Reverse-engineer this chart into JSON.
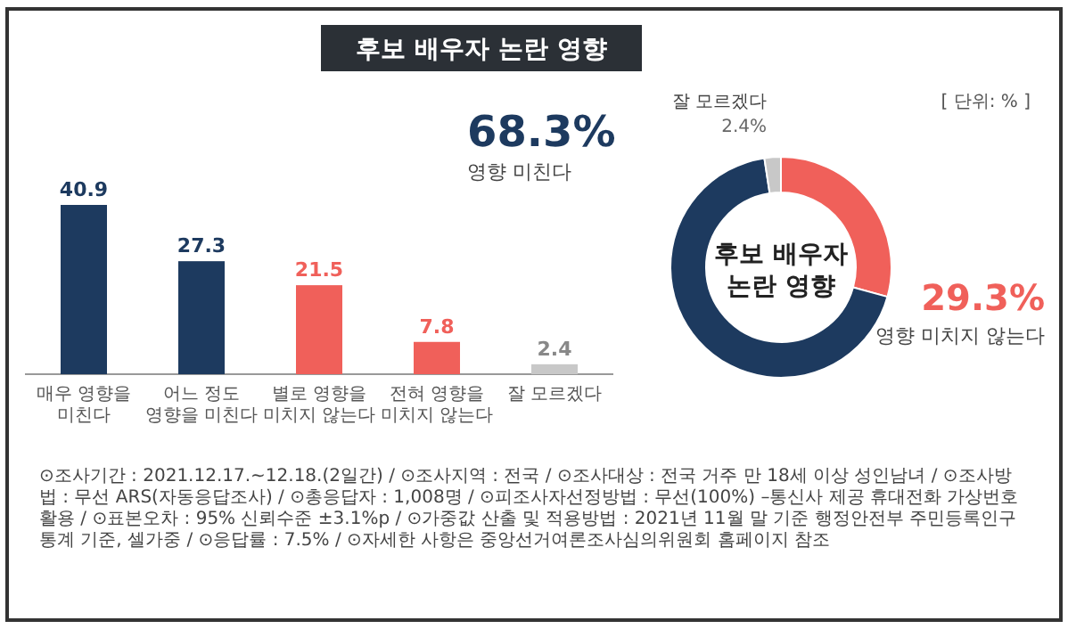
{
  "chart_data": [
    {
      "type": "bar",
      "title": "후보 배우자 논란 영향",
      "categories": [
        "매우 영향을\n미친다",
        "어느 정도\n영향을 미친다",
        "별로 영향을\n미치지 않는다",
        "전혀 영향을\n미치지 않는다",
        "잘 모르겠다"
      ],
      "values": [
        40.9,
        27.3,
        21.5,
        7.8,
        2.4
      ],
      "colors": [
        "#1d3a5f",
        "#1d3a5f",
        "#f0605a",
        "#f0605a",
        "#c8c8c8"
      ],
      "data_labels": true,
      "annotations": [
        "[ 단위: % ]",
        "⊙조사기간 : 2021.12.17.~12.18.(2일간) / ⊙조사지역 : 전국 / ⊙조사대상 : 전국 거주 만 18세 이상 성인남녀 / ⊙조사방법 : 무선 ARS(자동응답조사) / ⊙총응답자 : 1,008명 / ⊙피조사자선정방법 : 무선(100%) –통신사 제공 휴대전화 가상번호 활용 / ⊙표본오차 : 95% 신뢰수준 ±3.1%p / ⊙가중값 산출 및 적용방법 : 2021년 11월 말 기준 행정안전부 주민등록인구통계 기준, 셀가중 / ⊙응답률 : 7.5% / ⊙자세한 사항은 중앙선거여론조사심의위원회 홈페이지 참조"
      ]
    },
    {
      "type": "donut",
      "categories": [
        "영향 미치지 않는다",
        "영향 미친다",
        "잘 모르겠다"
      ],
      "values": [
        29.3,
        68.3,
        2.4
      ],
      "colors": [
        "#f0605a",
        "#1d3a5f",
        "#c8c8c8"
      ],
      "value_labels": [
        "29.3%",
        "68.3%",
        "2.4%"
      ],
      "annotations": [
        "후보 배우자 논란 영향"
      ]
    }
  ]
}
